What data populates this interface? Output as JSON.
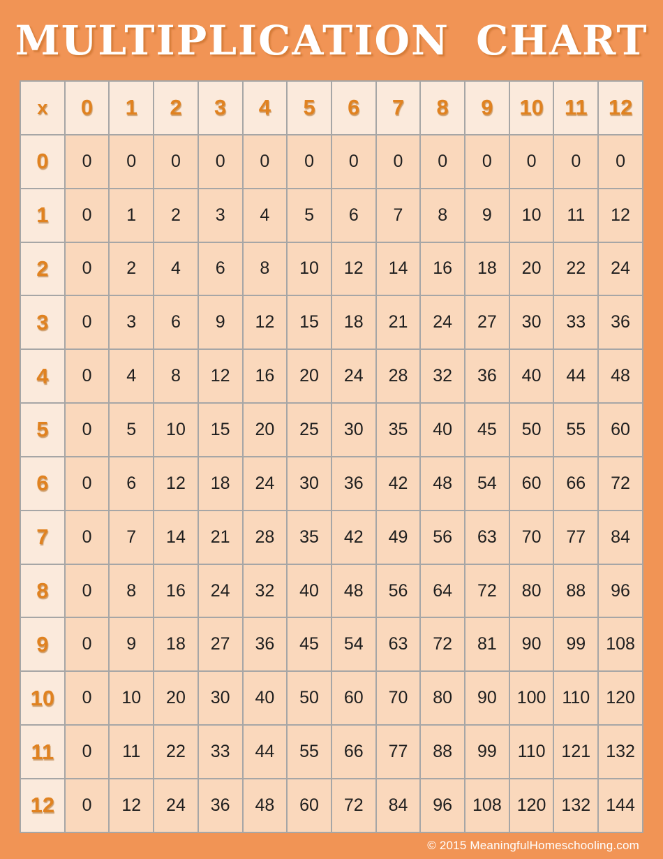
{
  "page": {
    "title": "MULTIPLICATION CHART",
    "footer": "© 2015 MeaningfulHomeschooling.com"
  },
  "colors": {
    "background": "#F19455",
    "header_cell_bg": "#FBEADC",
    "data_cell_bg": "#FAD8BC",
    "grid_line": "#A6A6A6",
    "header_text": "#E08220",
    "data_text": "#1E1E1E",
    "title_text": "#FFFFFF",
    "footer_text": "#FFFFFF"
  },
  "chart_data": {
    "type": "table",
    "title": "MULTIPLICATION CHART",
    "corner_label": "x",
    "column_headers": [
      "0",
      "1",
      "2",
      "3",
      "4",
      "5",
      "6",
      "7",
      "8",
      "9",
      "10",
      "11",
      "12"
    ],
    "row_headers": [
      "0",
      "1",
      "2",
      "3",
      "4",
      "5",
      "6",
      "7",
      "8",
      "9",
      "10",
      "11",
      "12"
    ],
    "rows": [
      [
        0,
        0,
        0,
        0,
        0,
        0,
        0,
        0,
        0,
        0,
        0,
        0,
        0
      ],
      [
        0,
        1,
        2,
        3,
        4,
        5,
        6,
        7,
        8,
        9,
        10,
        11,
        12
      ],
      [
        0,
        2,
        4,
        6,
        8,
        10,
        12,
        14,
        16,
        18,
        20,
        22,
        24
      ],
      [
        0,
        3,
        6,
        9,
        12,
        15,
        18,
        21,
        24,
        27,
        30,
        33,
        36
      ],
      [
        0,
        4,
        8,
        12,
        16,
        20,
        24,
        28,
        32,
        36,
        40,
        44,
        48
      ],
      [
        0,
        5,
        10,
        15,
        20,
        25,
        30,
        35,
        40,
        45,
        50,
        55,
        60
      ],
      [
        0,
        6,
        12,
        18,
        24,
        30,
        36,
        42,
        48,
        54,
        60,
        66,
        72
      ],
      [
        0,
        7,
        14,
        21,
        28,
        35,
        42,
        49,
        56,
        63,
        70,
        77,
        84
      ],
      [
        0,
        8,
        16,
        24,
        32,
        40,
        48,
        56,
        64,
        72,
        80,
        88,
        96
      ],
      [
        0,
        9,
        18,
        27,
        36,
        45,
        54,
        63,
        72,
        81,
        90,
        99,
        108
      ],
      [
        0,
        10,
        20,
        30,
        40,
        50,
        60,
        70,
        80,
        90,
        100,
        110,
        120
      ],
      [
        0,
        11,
        22,
        33,
        44,
        55,
        66,
        77,
        88,
        99,
        110,
        121,
        132
      ],
      [
        0,
        12,
        24,
        36,
        48,
        60,
        72,
        84,
        96,
        108,
        120,
        132,
        144
      ]
    ]
  }
}
